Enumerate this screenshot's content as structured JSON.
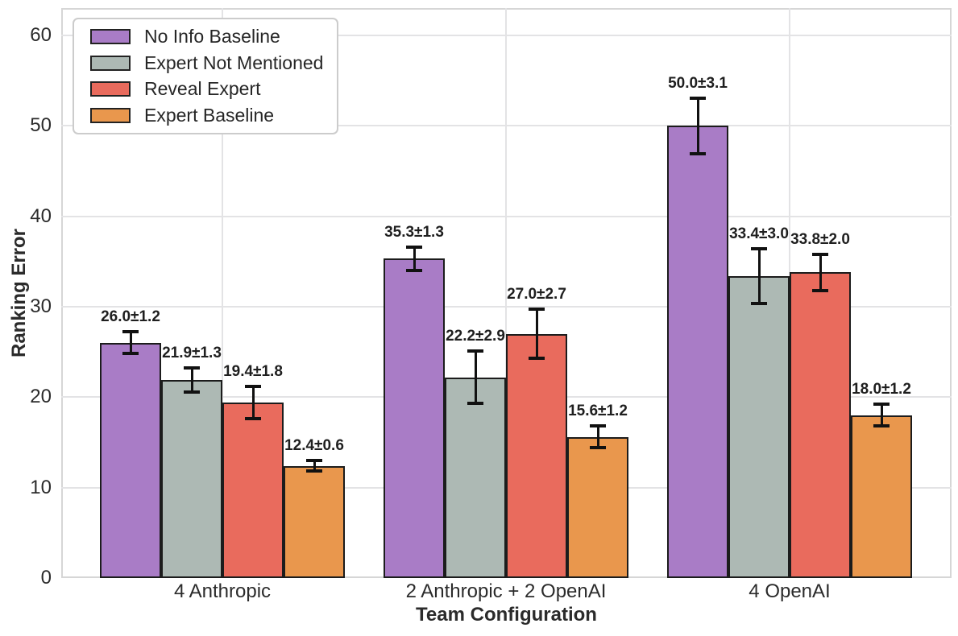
{
  "chart_data": {
    "type": "bar",
    "title": "",
    "xlabel": "Team Configuration",
    "ylabel": "Ranking Error",
    "categories": [
      "4 Anthropic",
      "2 Anthropic + 2 OpenAI",
      "4 OpenAI"
    ],
    "series": [
      {
        "name": "No Info Baseline",
        "color": "#a97cc6",
        "values": [
          26.0,
          35.3,
          50.0
        ],
        "errors": [
          1.2,
          1.3,
          3.1
        ],
        "labels": [
          "26.0±1.2",
          "35.3±1.3",
          "50.0±3.1"
        ]
      },
      {
        "name": "Expert Not Mentioned",
        "color": "#adb9b4",
        "values": [
          21.9,
          22.2,
          33.4
        ],
        "errors": [
          1.3,
          2.9,
          3.0
        ],
        "labels": [
          "21.9±1.3",
          "22.2±2.9",
          "33.4±3.0"
        ]
      },
      {
        "name": "Reveal Expert",
        "color": "#e96b5d",
        "values": [
          19.4,
          27.0,
          33.8
        ],
        "errors": [
          1.8,
          2.7,
          2.0
        ],
        "labels": [
          "19.4±1.8",
          "27.0±2.7",
          "33.8±2.0"
        ]
      },
      {
        "name": "Expert Baseline",
        "color": "#e9974d",
        "values": [
          12.4,
          15.6,
          18.0
        ],
        "errors": [
          0.6,
          1.2,
          1.2
        ],
        "labels": [
          "12.4±0.6",
          "15.6±1.2",
          "18.0±1.2"
        ]
      }
    ],
    "yticks": [
      0,
      10,
      20,
      30,
      40,
      50,
      60
    ],
    "ylim": [
      0,
      63
    ],
    "grid": true,
    "legend_position": "upper left",
    "colors": {
      "bar_edge": "#1c1c1c",
      "error_bar": "#111111",
      "grid": "#e3e3e5",
      "text": "#2b2b2b"
    }
  }
}
